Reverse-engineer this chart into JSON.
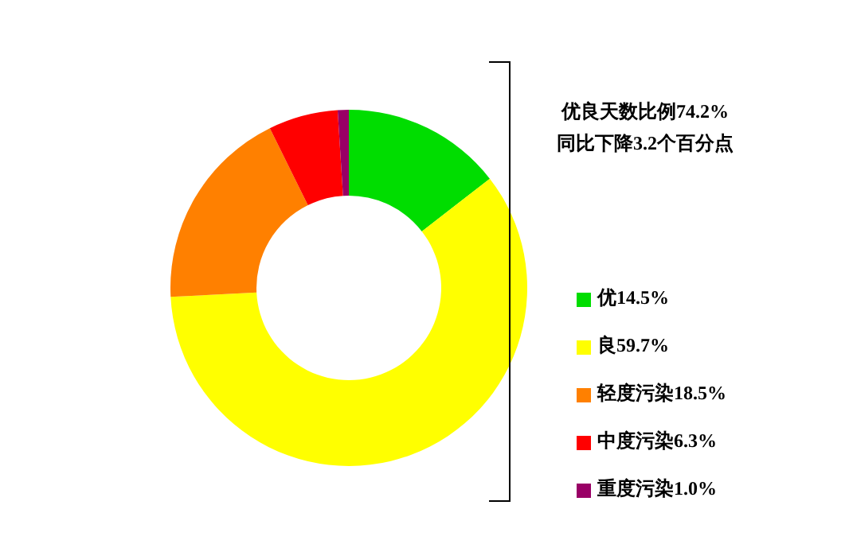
{
  "chart_data": {
    "type": "donut",
    "categories": [
      "优",
      "良",
      "轻度污染",
      "中度污染",
      "重度污染"
    ],
    "values": [
      14.5,
      59.7,
      18.5,
      6.3,
      1.0
    ],
    "value_labels": [
      "14.5%",
      "59.7%",
      "18.5%",
      "6.3%",
      "1.0%"
    ],
    "colors": [
      "#00dd00",
      "#ffff00",
      "#ff8000",
      "#ff0000",
      "#990066"
    ],
    "legend": "right",
    "annotations": [
      "优良天数比例74.2%",
      "同比下降3.2个百分点"
    ]
  }
}
